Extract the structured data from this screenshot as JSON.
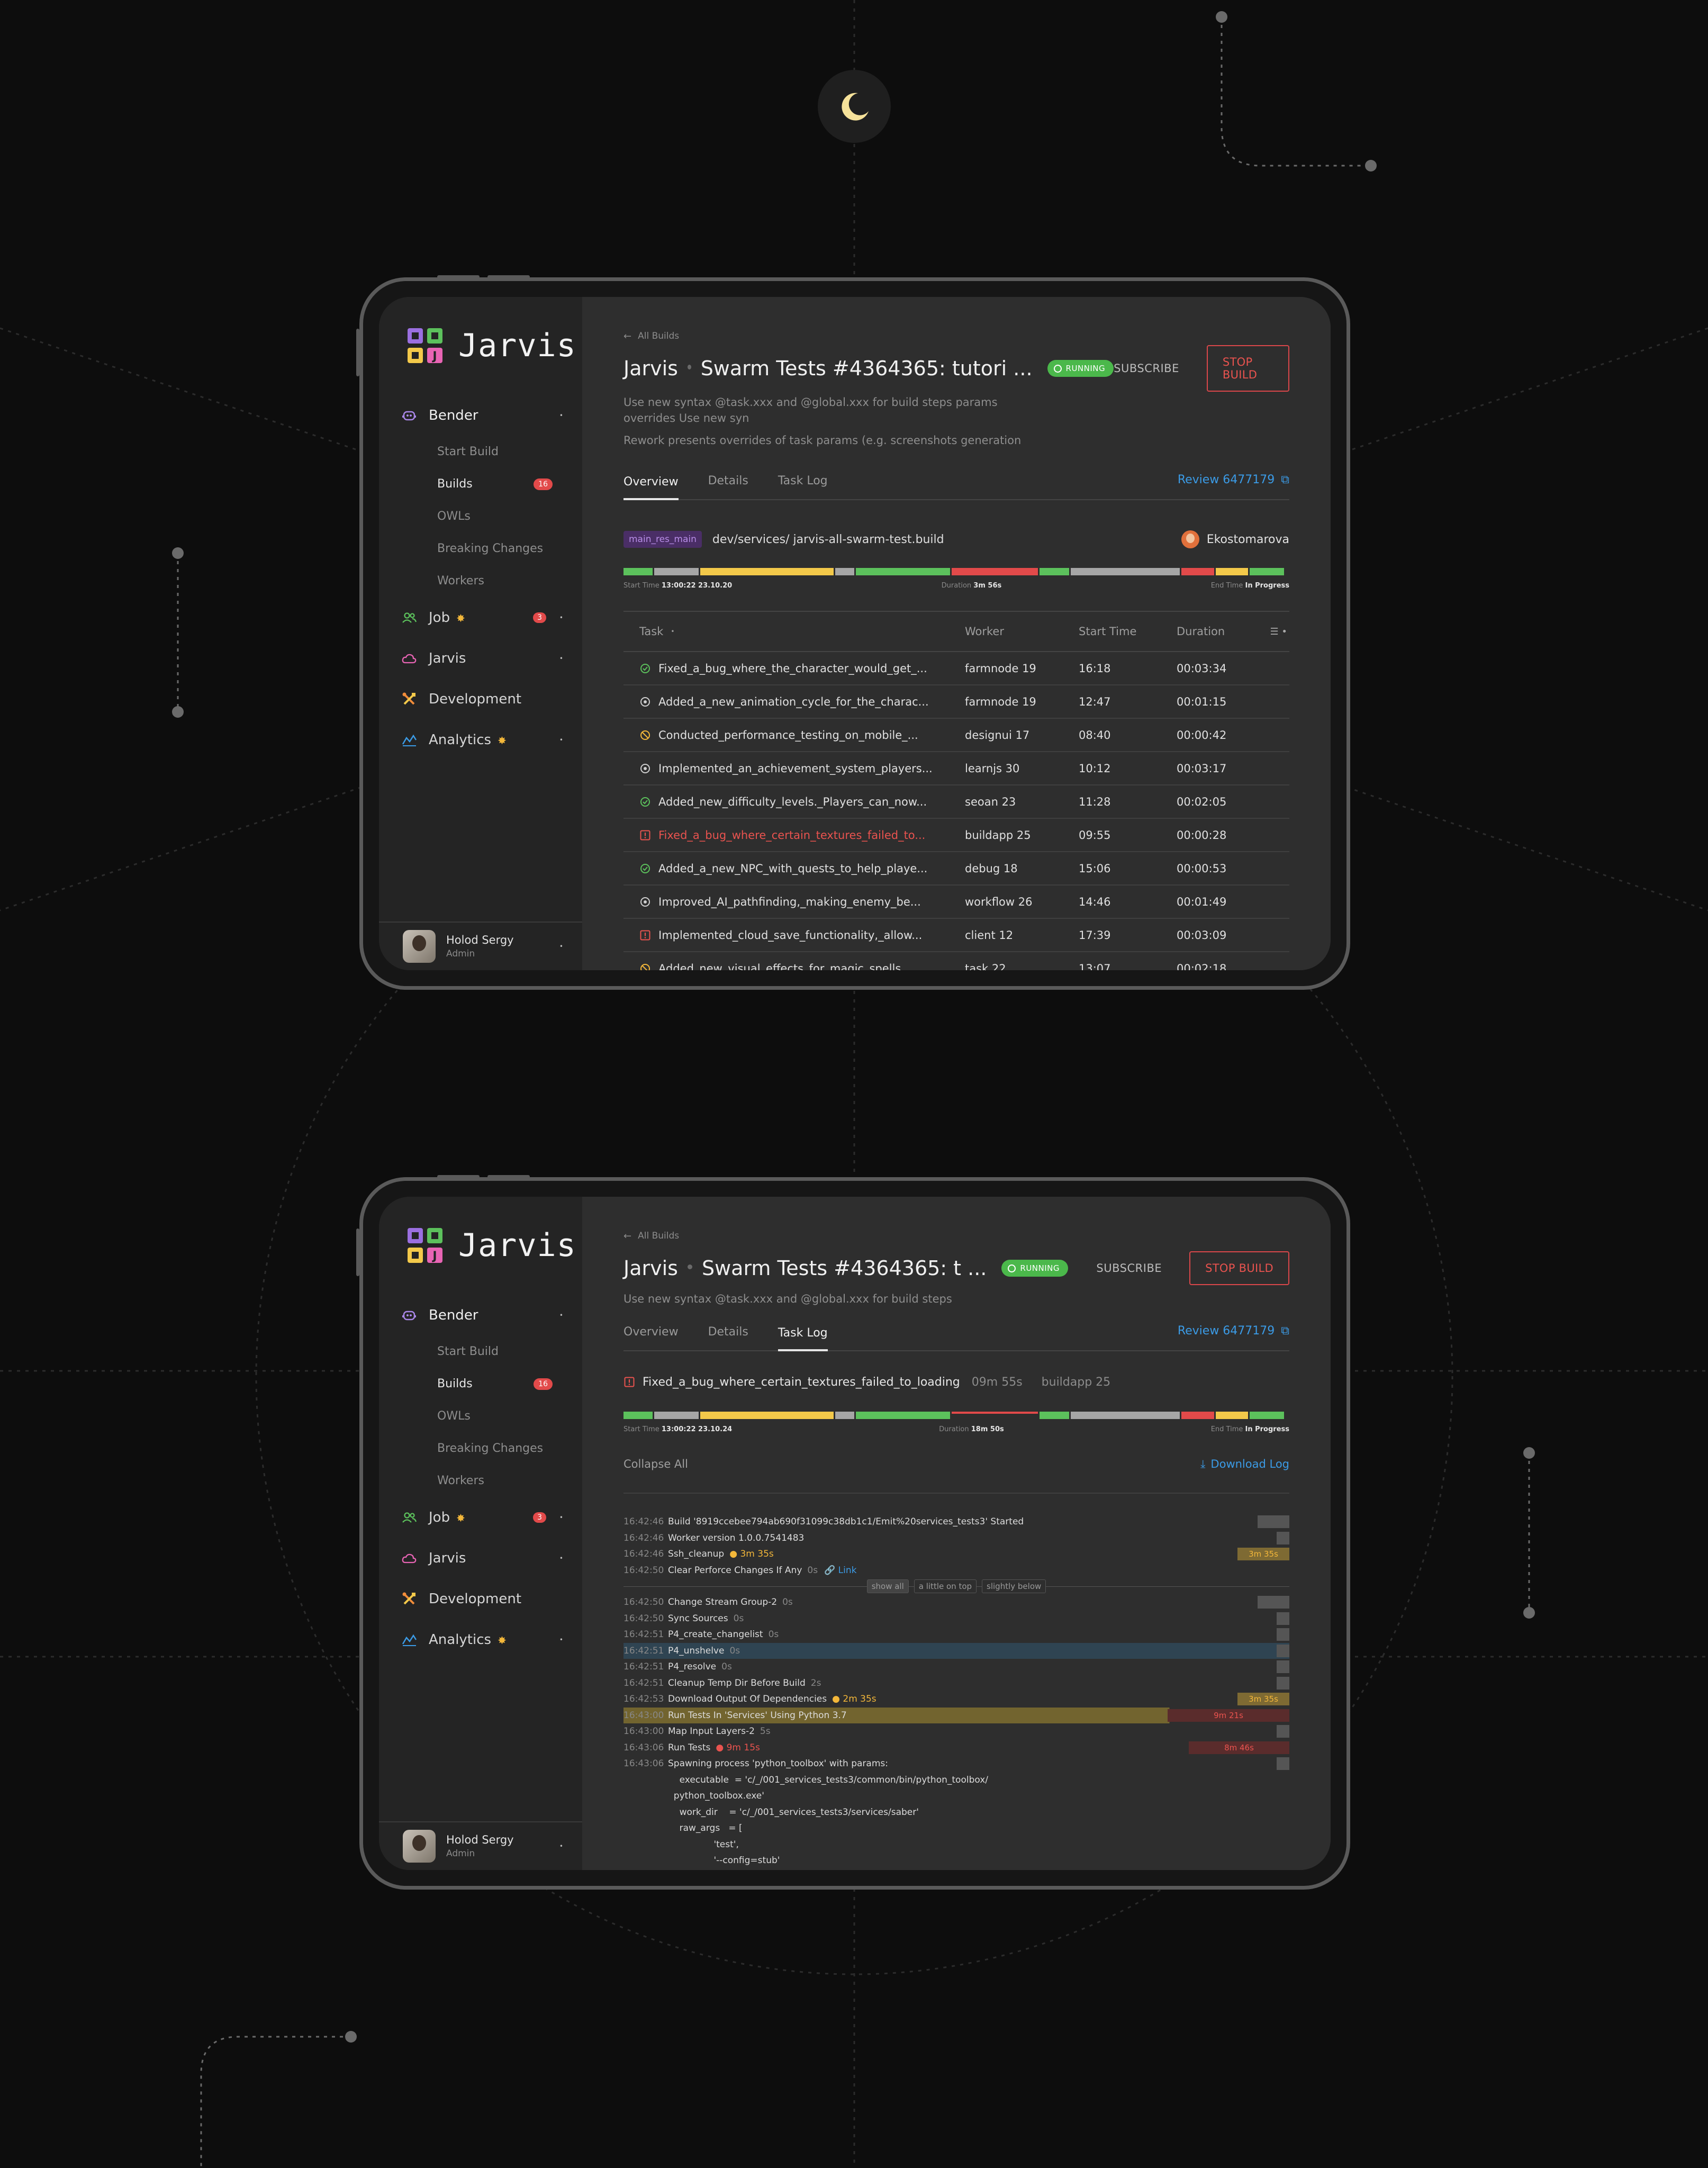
{
  "app": {
    "logo_text": "Jarvis",
    "logo_letter": "J"
  },
  "sidebar": {
    "bender": "Bender",
    "bender_items": [
      "Start Build",
      "Builds",
      "OWLs",
      "Breaking Changes",
      "Workers"
    ],
    "builds_badge": "16",
    "job": "Job",
    "job_badge": "3",
    "jarvis": "Jarvis",
    "development": "Development",
    "analytics": "Analytics",
    "user_name": "Holod Sergy",
    "user_role": "Admin"
  },
  "build": {
    "back_label": "All Builds",
    "project": "Jarvis",
    "title_top": "Swarm Tests #4364365: tutori ...",
    "title_bottom": "Swarm Tests #4364365: t ...",
    "status": "RUNNING",
    "subscribe": "SUBSCRIBE",
    "stop": "STOP BUILD",
    "desc1": "Use new syntax @task.xxx and @global.xxx for build steps params",
    "desc2": "overrides Use new syn",
    "desc3": "Rework presents overrides of task params (e.g. screenshots generation",
    "desc_bottom": "Use new syntax @task.xxx and @global.xxx for build steps",
    "review": "Review 6477179"
  },
  "tabs": [
    "Overview",
    "Details",
    "Task Log"
  ],
  "overview": {
    "branch_tag": "main_res_main",
    "path": "dev/services/ jarvis-all-swarm-test.build",
    "assignee": "Ekostomarova",
    "start_label": "Start Time",
    "start_value": "13:00:22 23.10.20",
    "duration_label": "Duration",
    "duration_value": "3m 56s",
    "end_label": "End Time",
    "end_value": "In Progress",
    "columns": [
      "Task",
      "Worker",
      "Start Time",
      "Duration"
    ],
    "rows": [
      {
        "status": "success",
        "task": "Fixed_a_bug_where_the_character_would_get_...",
        "worker": "farmnode 19",
        "start": "16:18",
        "duration": "00:03:34"
      },
      {
        "status": "running",
        "task": "Added_a_new_animation_cycle_for_the_charac...",
        "worker": "farmnode 19",
        "start": "12:47",
        "duration": "00:01:15"
      },
      {
        "status": "skipped",
        "task": "Conducted_performance_testing_on_mobile_...",
        "worker": "designui 17",
        "start": "08:40",
        "duration": "00:00:42"
      },
      {
        "status": "running",
        "task": "Implemented_an_achievement_system_players...",
        "worker": "learnjs 30",
        "start": "10:12",
        "duration": "00:03:17"
      },
      {
        "status": "success",
        "task": "Added_new_difficulty_levels._Players_can_now...",
        "worker": "seoan 23",
        "start": "11:28",
        "duration": "00:02:05"
      },
      {
        "status": "failed",
        "task": "Fixed_a_bug_where_certain_textures_failed_to...",
        "worker": "buildapp 25",
        "start": "09:55",
        "duration": "00:00:28"
      },
      {
        "status": "success",
        "task": "Added_a_new_NPC_with_quests_to_help_playe...",
        "worker": "debug 18",
        "start": "15:06",
        "duration": "00:00:53"
      },
      {
        "status": "running",
        "task": "Improved_AI_pathfinding,_making_enemy_be...",
        "worker": "workflow 26",
        "start": "14:46",
        "duration": "00:01:49"
      },
      {
        "status": "failed-muted",
        "task": "Implemented_cloud_save_functionality,_allow...",
        "worker": "client 12",
        "start": "17:39",
        "duration": "00:03:09"
      },
      {
        "status": "skipped",
        "task": "Added_new_visual_effects_for_magic_spells_...",
        "worker": "task 22",
        "start": "13:07",
        "duration": "00:02:18"
      }
    ]
  },
  "tasklog": {
    "task_name": "Fixed_a_bug_where_certain_textures_failed_to_loading",
    "task_time": "09m 55s",
    "task_worker": "buildapp 25",
    "start_value": "13:00:22 23.10.24",
    "duration_value": "18m 50s",
    "collapse": "Collapse All",
    "download": "Download Log",
    "link": "Link",
    "chips": [
      "show all",
      "a little on top",
      "slightly below"
    ],
    "lines_a": [
      {
        "ts": "16:42:46",
        "text": "Build '8919ccebee794ab690f31099c38db1c1/Emit%20services_tests3' Started"
      },
      {
        "ts": "16:42:46",
        "text": "Worker version 1.0.0.7541483"
      },
      {
        "ts": "16:42:46",
        "text": "Ssh_cleanup",
        "extra": "3m 35s",
        "bar": "3m 35s"
      },
      {
        "ts": "16:42:50",
        "text": "Clear Perforce Changes If Any",
        "extra": "0s"
      }
    ],
    "lines_b": [
      {
        "ts": "16:42:50",
        "text": "Change Stream Group-2",
        "extra": "0s"
      },
      {
        "ts": "16:42:50",
        "text": "Sync Sources",
        "extra": "0s"
      },
      {
        "ts": "16:42:51",
        "text": "P4_create_changelist",
        "extra": "0s"
      },
      {
        "ts": "16:42:51",
        "text": "P4_unshelve",
        "extra": "0s"
      },
      {
        "ts": "16:42:51",
        "text": "P4_resolve",
        "extra": "0s"
      },
      {
        "ts": "16:42:51",
        "text": "Cleanup Temp Dir Before Build",
        "extra": "2s"
      },
      {
        "ts": "16:42:53",
        "text": "Download Output Of Dependencies",
        "extra": "2m 35s",
        "bar": "3m 35s"
      },
      {
        "ts": "16:43:00",
        "text": "Run Tests In 'Services' Using Python 3.7",
        "bar": "9m 21s"
      },
      {
        "ts": "16:43:00",
        "text": "Map Input Layers-2",
        "extra": "5s"
      },
      {
        "ts": "16:43:06",
        "text": "Run Tests",
        "extra": "9m 15s",
        "bar": "8m 46s"
      },
      {
        "ts": "16:43:06",
        "text": "  Spawning process 'python_toolbox' with params:"
      }
    ],
    "code": [
      "    executable  = 'c/_/001_services_tests3/common/bin/python_toolbox/",
      "  python_toolbox.exe'",
      "    work_dir    = 'c/_/001_services_tests3/services/saber'",
      "    raw_args   = [",
      "                'test',",
      "                '--config=stub'"
    ]
  },
  "colors": {
    "accent": "#3b9be6",
    "success": "#5cc15c",
    "danger": "#e24a4a",
    "warning": "#f3c94a",
    "running": "#4bb84b"
  },
  "progress_segments": [
    {
      "color": "#5cc15c",
      "fraction": 0.045
    },
    {
      "color": "#a6a6a6",
      "fraction": 0.068
    },
    {
      "color": "#f3c94a",
      "fraction": 0.205
    },
    {
      "color": "#a6a6a6",
      "fraction": 0.03
    },
    {
      "color": "#5cc15c",
      "fraction": 0.145
    },
    {
      "color": "#e24a4a",
      "fraction": 0.132
    },
    {
      "color": "#5cc15c",
      "fraction": 0.046
    },
    {
      "color": "#a6a6a6",
      "fraction": 0.168
    },
    {
      "color": "#e24a4a",
      "fraction": 0.05
    },
    {
      "color": "#f3c94a",
      "fraction": 0.05
    },
    {
      "color": "#5cc15c",
      "fraction": 0.053
    }
  ]
}
